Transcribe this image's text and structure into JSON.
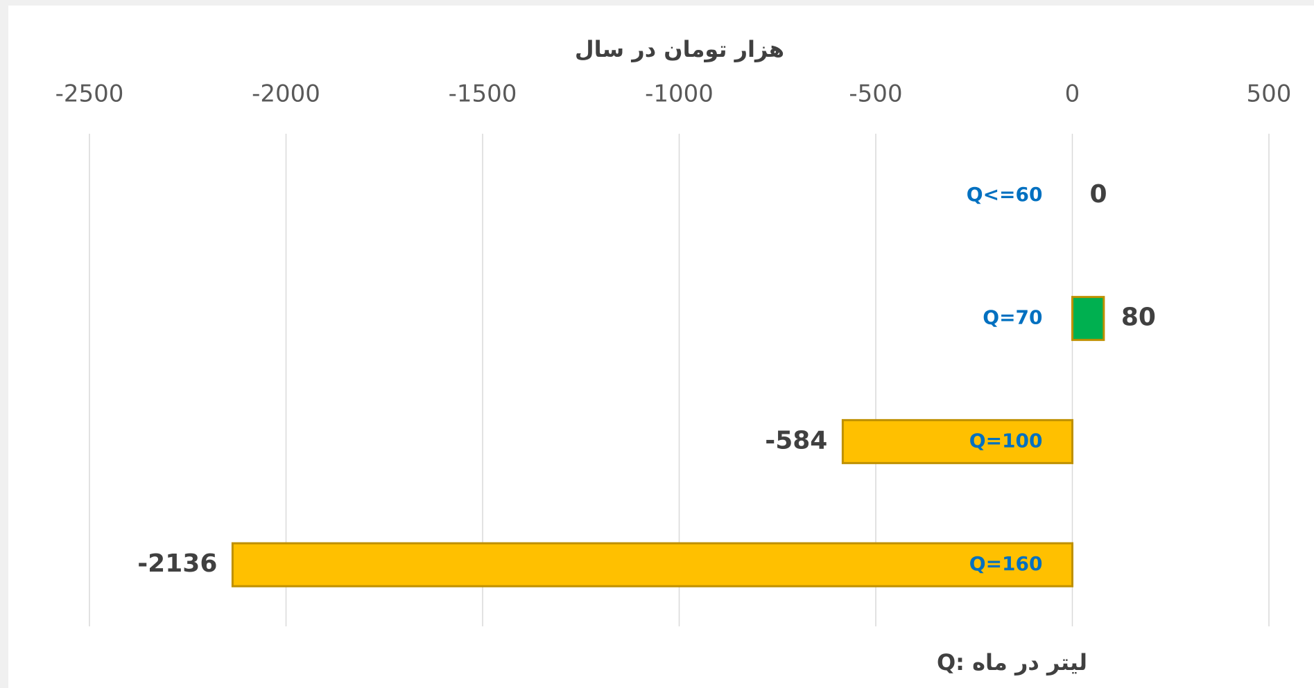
{
  "chart_data": {
    "type": "bar",
    "orientation": "horizontal",
    "title": "هزار تومان در سال",
    "note": "Q: لیتر در ماه",
    "categories": [
      "Q<=60",
      "Q=70",
      "Q=100",
      "Q=160"
    ],
    "values": [
      0,
      80,
      -584,
      -2136
    ],
    "colors": [
      "#ffc000",
      "#00b050",
      "#ffc000",
      "#ffc000"
    ],
    "xlim": [
      -2500,
      500
    ],
    "xticks": [
      -2500,
      -2000,
      -1500,
      -1000,
      -500,
      0,
      500
    ],
    "grid": true
  }
}
